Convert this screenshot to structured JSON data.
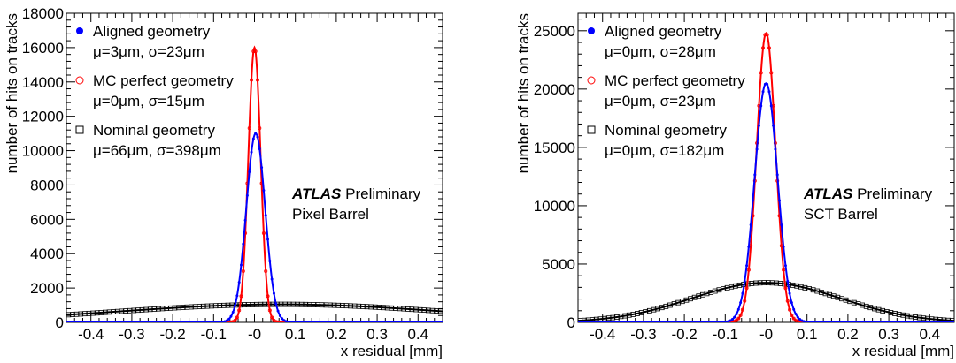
{
  "chart_data": [
    {
      "type": "line",
      "xlabel": "x residual [mm]",
      "ylabel": "number of hits on tracks",
      "xlim": [
        -0.46,
        0.46
      ],
      "ylim": [
        0,
        18000
      ],
      "xticks": [
        -0.4,
        -0.3,
        -0.2,
        -0.1,
        0,
        0.1,
        0.2,
        0.3,
        0.4
      ],
      "xtick_labels": [
        "-0.4",
        "-0.3",
        "-0.2",
        "-0.1",
        "-0",
        "0.1",
        "0.2",
        "0.3",
        "0.4"
      ],
      "yticks": [
        0,
        2000,
        4000,
        6000,
        8000,
        10000,
        12000,
        14000,
        16000,
        18000
      ],
      "ytick_labels": [
        "0",
        "2000",
        "4000",
        "6000",
        "8000",
        "10000",
        "12000",
        "14000",
        "16000",
        "18000"
      ],
      "legend_position": "top-left",
      "series": [
        {
          "name": "Aligned geometry",
          "stats": "μ=3μm, σ=23μm",
          "color": "#0000ff",
          "marker": "filled-circle",
          "shape": "gaussian",
          "mean": 0.003,
          "sigma": 0.023,
          "peak": 11000
        },
        {
          "name": "MC perfect geometry",
          "stats": "μ=0μm, σ=15μm",
          "color": "#ff0000",
          "marker": "open-circle",
          "shape": "gaussian",
          "mean": 0.0,
          "sigma": 0.015,
          "peak": 16000
        },
        {
          "name": "Nominal geometry",
          "stats": "μ=66μm, σ=398μm",
          "color": "#000000",
          "marker": "open-square",
          "shape": "gaussian",
          "mean": 0.066,
          "sigma": 0.398,
          "peak": 1050
        }
      ],
      "annotation": {
        "atlas": "ATLAS",
        "preliminary": "Preliminary",
        "detector": "Pixel Barrel"
      }
    },
    {
      "type": "line",
      "xlabel": "x residual [mm]",
      "ylabel": "number of hits on tracks",
      "xlim": [
        -0.46,
        0.46
      ],
      "ylim": [
        0,
        26500
      ],
      "xticks": [
        -0.4,
        -0.3,
        -0.2,
        -0.1,
        0,
        0.1,
        0.2,
        0.3,
        0.4
      ],
      "xtick_labels": [
        "-0.4",
        "-0.3",
        "-0.2",
        "-0.1",
        "-0",
        "0.1",
        "0.2",
        "0.3",
        "0.4"
      ],
      "yticks": [
        0,
        5000,
        10000,
        15000,
        20000,
        25000
      ],
      "ytick_labels": [
        "0",
        "5000",
        "10000",
        "15000",
        "20000",
        "25000"
      ],
      "legend_position": "top-left",
      "series": [
        {
          "name": "Aligned geometry",
          "stats": "μ=0μm, σ=28μm",
          "color": "#0000ff",
          "marker": "filled-circle",
          "shape": "gaussian",
          "mean": 0.0,
          "sigma": 0.028,
          "peak": 20500
        },
        {
          "name": "MC perfect geometry",
          "stats": "μ=0μm, σ=23μm",
          "color": "#ff0000",
          "marker": "open-circle",
          "shape": "gaussian",
          "mean": 0.0,
          "sigma": 0.023,
          "peak": 24800
        },
        {
          "name": "Nominal geometry",
          "stats": "μ=0μm, σ=182μm",
          "color": "#000000",
          "marker": "open-square",
          "shape": "gaussian",
          "mean": 0.0,
          "sigma": 0.182,
          "peak": 3400
        }
      ],
      "annotation": {
        "atlas": "ATLAS",
        "preliminary": "Preliminary",
        "detector": "SCT Barrel"
      }
    }
  ]
}
